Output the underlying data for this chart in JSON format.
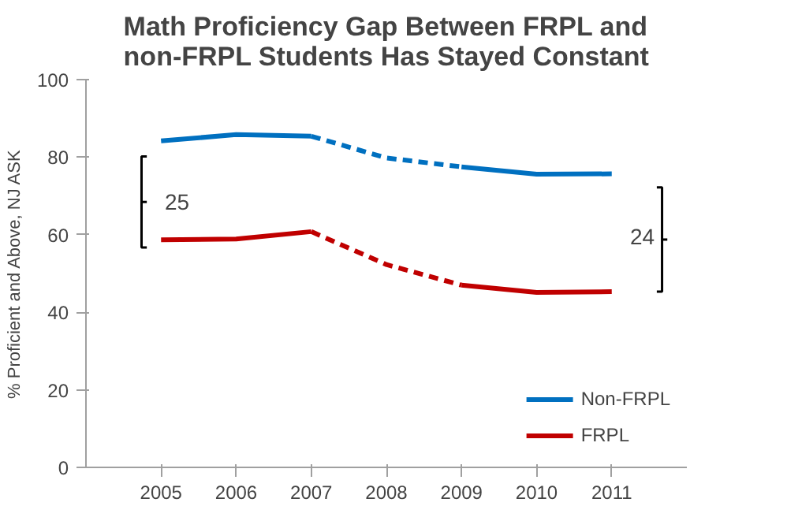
{
  "chart_data": {
    "type": "line",
    "title": "Math Proficiency Gap Between FRPL and\nnon-FRPL Students Has Stayed Constant",
    "ylabel": "% Proficient and Above, NJ ASK",
    "x": [
      2005,
      2006,
      2007,
      2008,
      2009,
      2010,
      2011
    ],
    "series": [
      {
        "color": "#0070c0",
        "values": [
          null,
          null,
          85.4,
          79.8,
          77.5,
          null,
          null
        ],
        "line_style": "dashed"
      },
      {
        "name": "Non-FRPL",
        "color": "#0070c0",
        "values": [
          84.2,
          85.8,
          85.4,
          null,
          77.5,
          75.6,
          75.7
        ],
        "line_style": "solid"
      },
      {
        "color": "#c00000",
        "values": [
          null,
          null,
          60.8,
          52.3,
          47.0,
          null,
          null
        ],
        "line_style": "dashed"
      },
      {
        "name": "FRPL",
        "color": "#c00000",
        "values": [
          58.7,
          58.9,
          60.8,
          null,
          47.0,
          45.1,
          45.3
        ],
        "line_style": "solid"
      }
    ],
    "annotations": [
      "25",
      "24"
    ],
    "xlim": [
      2004,
      2012
    ],
    "xticks": [
      2005,
      2006,
      2007,
      2008,
      2009,
      2010,
      2011
    ],
    "ylim": [
      0,
      100
    ],
    "yticks": [
      0,
      20,
      40,
      60,
      80,
      100
    ],
    "grid": false,
    "legend": "bottom right",
    "marker": "none"
  }
}
